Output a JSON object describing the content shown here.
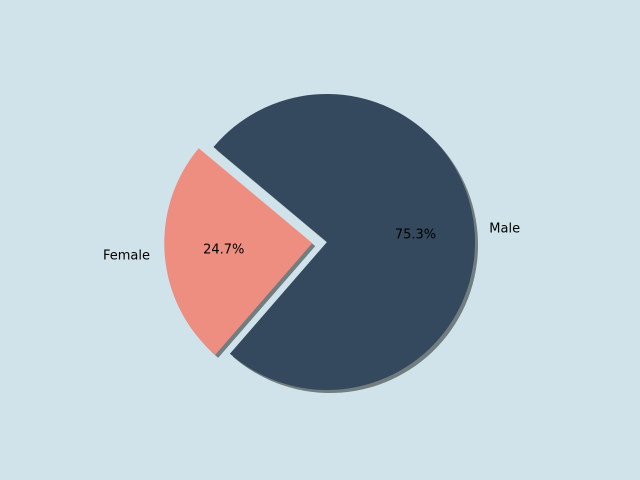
{
  "chart_data": {
    "type": "pie",
    "categories": [
      "Male",
      "Female"
    ],
    "values": [
      75.3,
      24.7
    ],
    "value_labels": [
      "75.3%",
      "24.7%"
    ],
    "colors": [
      "#34495e",
      "#ee8e80"
    ],
    "explode": [
      0,
      0.1
    ],
    "shadow": true
  }
}
